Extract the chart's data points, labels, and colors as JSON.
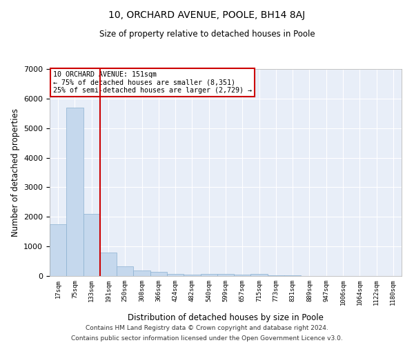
{
  "title": "10, ORCHARD AVENUE, POOLE, BH14 8AJ",
  "subtitle": "Size of property relative to detached houses in Poole",
  "xlabel": "Distribution of detached houses by size in Poole",
  "ylabel": "Number of detached properties",
  "bar_color": "#c5d8ed",
  "bar_edge_color": "#8ab0d0",
  "background_color": "#ffffff",
  "plot_bg_color": "#e8eef8",
  "grid_color": "#ffffff",
  "vline_color": "#cc0000",
  "vline_x_idx": 2,
  "annotation_text_line1": "10 ORCHARD AVENUE: 151sqm",
  "annotation_text_line2": "← 75% of detached houses are smaller (8,351)",
  "annotation_text_line3": "25% of semi-detached houses are larger (2,729) →",
  "annotation_box_color": "#ffffff",
  "annotation_box_edge": "#cc0000",
  "categories": [
    "17sqm",
    "75sqm",
    "133sqm",
    "191sqm",
    "250sqm",
    "308sqm",
    "366sqm",
    "424sqm",
    "482sqm",
    "540sqm",
    "599sqm",
    "657sqm",
    "715sqm",
    "773sqm",
    "831sqm",
    "889sqm",
    "947sqm",
    "1006sqm",
    "1064sqm",
    "1122sqm",
    "1180sqm"
  ],
  "values": [
    1750,
    5700,
    2100,
    800,
    330,
    195,
    130,
    75,
    50,
    65,
    75,
    50,
    65,
    25,
    12,
    8,
    4,
    4,
    4,
    4,
    4
  ],
  "ylim": [
    0,
    7000
  ],
  "yticks": [
    0,
    1000,
    2000,
    3000,
    4000,
    5000,
    6000,
    7000
  ],
  "footer1": "Contains HM Land Registry data © Crown copyright and database right 2024.",
  "footer2": "Contains public sector information licensed under the Open Government Licence v3.0."
}
